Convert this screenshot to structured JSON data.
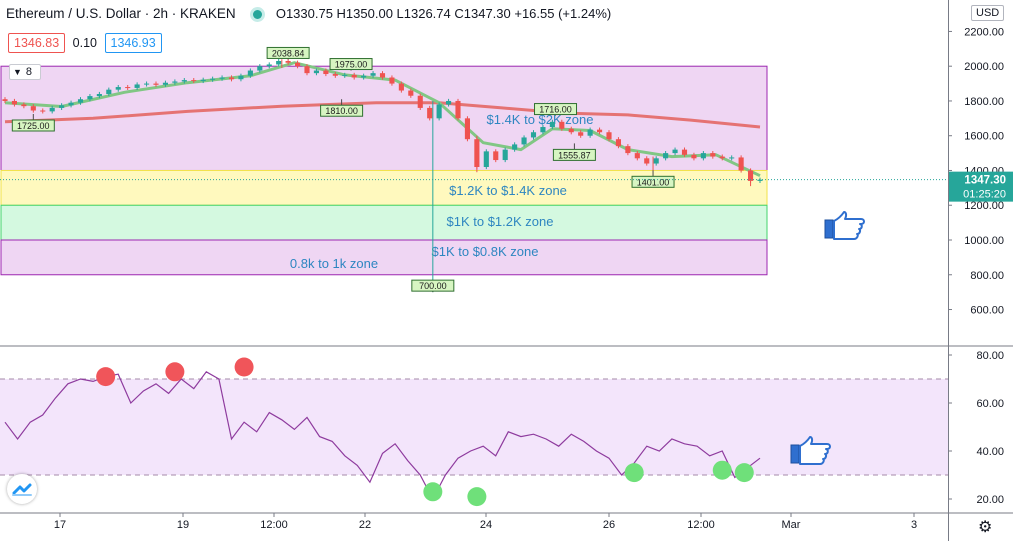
{
  "header": {
    "symbol": "Ethereum / U.S. Dollar · 2h · KRAKEN",
    "ohlc_label": "O1330.75 H1350.00 L1326.74 C1347.30 +16.55 (+1.24%)"
  },
  "quote": {
    "bid": "1346.83",
    "spread": "0.10",
    "ask": "1346.93"
  },
  "indicator_toggle": {
    "count": "8"
  },
  "currency_button": "USD",
  "price_axis": {
    "ticks": [
      "2200.00",
      "2000.00",
      "1800.00",
      "1600.00",
      "1400.00",
      "1200.00",
      "1000.00",
      "800.00",
      "600.00"
    ],
    "last_price": "1347.30",
    "countdown": "01:25:20"
  },
  "time_axis": {
    "ticks": [
      "17",
      "19",
      "12:00",
      "22",
      "24",
      "26",
      "12:00",
      "Mar",
      "3"
    ]
  },
  "osc_axis": {
    "ticks": [
      "80.00",
      "60.00",
      "40.00",
      "20.00"
    ]
  },
  "colors": {
    "up": "#26a69a",
    "down": "#ef5350",
    "ma_fast": "#81c784",
    "ma_slow": "#e57373",
    "zone_purple": "#e1bee7",
    "zone_yellow": "#fff59d",
    "zone_green": "#b9f6ca",
    "osc": "#9c27b0"
  },
  "icons": [
    "thumbs-up-icon",
    "tradingview-logo-icon",
    "gear-icon"
  ],
  "chart_data": [
    {
      "type": "candlestick",
      "title": "",
      "ylim": [
        520,
        2270
      ],
      "x_range": [
        15.6,
        27.6
      ],
      "candles": [
        [
          15.6,
          1810,
          1800
        ],
        [
          15.75,
          1800,
          1780
        ],
        [
          15.9,
          1780,
          1770
        ],
        [
          16.05,
          1770,
          1745
        ],
        [
          16.2,
          1745,
          1740
        ],
        [
          16.35,
          1740,
          1760
        ],
        [
          16.5,
          1760,
          1775
        ],
        [
          16.65,
          1775,
          1790
        ],
        [
          16.8,
          1790,
          1810
        ],
        [
          16.95,
          1810,
          1828
        ],
        [
          17.1,
          1828,
          1840
        ],
        [
          17.25,
          1840,
          1865
        ],
        [
          17.4,
          1865,
          1880
        ],
        [
          17.55,
          1880,
          1875
        ],
        [
          17.7,
          1875,
          1895
        ],
        [
          17.85,
          1895,
          1900
        ],
        [
          18.0,
          1900,
          1893
        ],
        [
          18.15,
          1893,
          1905
        ],
        [
          18.3,
          1905,
          1912
        ],
        [
          18.45,
          1912,
          1920
        ],
        [
          18.6,
          1920,
          1915
        ],
        [
          18.75,
          1915,
          1922
        ],
        [
          18.9,
          1922,
          1928
        ],
        [
          19.05,
          1928,
          1935
        ],
        [
          19.2,
          1935,
          1925
        ],
        [
          19.35,
          1925,
          1945
        ],
        [
          19.5,
          1945,
          1975
        ],
        [
          19.65,
          1975,
          2000
        ],
        [
          19.8,
          2000,
          2010
        ],
        [
          19.95,
          2010,
          2030
        ],
        [
          20.1,
          2030,
          2020
        ],
        [
          20.25,
          2020,
          2000
        ],
        [
          20.4,
          2000,
          1960
        ],
        [
          20.55,
          1960,
          1975
        ],
        [
          20.7,
          1975,
          1955
        ],
        [
          20.85,
          1955,
          1945
        ],
        [
          21.0,
          1945,
          1950
        ],
        [
          21.15,
          1950,
          1935
        ],
        [
          21.3,
          1935,
          1945
        ],
        [
          21.45,
          1945,
          1960
        ],
        [
          21.6,
          1960,
          1935
        ],
        [
          21.75,
          1935,
          1900
        ],
        [
          21.9,
          1900,
          1860
        ],
        [
          22.05,
          1860,
          1830
        ],
        [
          22.2,
          1830,
          1760
        ],
        [
          22.35,
          1760,
          1700
        ],
        [
          22.5,
          1700,
          1780
        ],
        [
          22.65,
          1780,
          1800
        ],
        [
          22.8,
          1800,
          1700
        ],
        [
          22.95,
          1700,
          1580
        ],
        [
          23.1,
          1580,
          1420
        ],
        [
          23.25,
          1420,
          1510
        ],
        [
          23.4,
          1510,
          1460
        ],
        [
          23.55,
          1460,
          1520
        ],
        [
          23.7,
          1520,
          1550
        ],
        [
          23.85,
          1550,
          1590
        ],
        [
          24.0,
          1590,
          1620
        ],
        [
          24.15,
          1620,
          1650
        ],
        [
          24.3,
          1650,
          1680
        ],
        [
          24.45,
          1680,
          1640
        ],
        [
          24.6,
          1640,
          1620
        ],
        [
          24.75,
          1620,
          1600
        ],
        [
          24.9,
          1600,
          1635
        ],
        [
          25.05,
          1635,
          1620
        ],
        [
          25.2,
          1620,
          1580
        ],
        [
          25.35,
          1580,
          1540
        ],
        [
          25.5,
          1540,
          1500
        ],
        [
          25.65,
          1500,
          1470
        ],
        [
          25.8,
          1470,
          1440
        ],
        [
          25.95,
          1440,
          1470
        ],
        [
          26.1,
          1470,
          1500
        ],
        [
          26.25,
          1500,
          1520
        ],
        [
          26.4,
          1520,
          1490
        ],
        [
          26.55,
          1490,
          1470
        ],
        [
          26.7,
          1470,
          1500
        ],
        [
          26.85,
          1500,
          1480
        ],
        [
          27.0,
          1480,
          1470
        ],
        [
          27.15,
          1470,
          1475
        ],
        [
          27.3,
          1475,
          1400
        ],
        [
          27.45,
          1400,
          1340
        ],
        [
          27.6,
          1340,
          1347
        ]
      ],
      "wicks": [
        [
          20.0,
          2040,
          1990
        ],
        [
          22.4,
          1800,
          700
        ],
        [
          23.1,
          1600,
          1390
        ],
        [
          25.9,
          1480,
          1400
        ],
        [
          27.45,
          1410,
          1310
        ]
      ],
      "ma_fast": [
        [
          15.6,
          1790
        ],
        [
          16.5,
          1768
        ],
        [
          17.5,
          1850
        ],
        [
          18.5,
          1905
        ],
        [
          19.5,
          1945
        ],
        [
          20.2,
          2020
        ],
        [
          21.0,
          1950
        ],
        [
          21.8,
          1920
        ],
        [
          22.5,
          1790
        ],
        [
          23.2,
          1560
        ],
        [
          23.8,
          1520
        ],
        [
          24.3,
          1640
        ],
        [
          24.9,
          1630
        ],
        [
          25.5,
          1520
        ],
        [
          26.2,
          1480
        ],
        [
          26.9,
          1490
        ],
        [
          27.6,
          1370
        ]
      ],
      "ma_slow": [
        [
          15.6,
          1680
        ],
        [
          17.0,
          1700
        ],
        [
          18.5,
          1740
        ],
        [
          20.0,
          1770
        ],
        [
          21.5,
          1790
        ],
        [
          22.5,
          1790
        ],
        [
          23.5,
          1760
        ],
        [
          24.5,
          1730
        ],
        [
          25.5,
          1720
        ],
        [
          26.5,
          1690
        ],
        [
          27.6,
          1650
        ]
      ],
      "labels": [
        {
          "x": 20.1,
          "y": 2038.84,
          "text": "2038.84"
        },
        {
          "x": 16.05,
          "y": 1725.0,
          "text": "1725.00"
        },
        {
          "x": 21.1,
          "y": 1975.0,
          "text": "1975.00"
        },
        {
          "x": 20.95,
          "y": 1810.0,
          "text": "1810.00"
        },
        {
          "x": 24.35,
          "y": 1716.0,
          "text": "1716.00"
        },
        {
          "x": 24.65,
          "y": 1555.87,
          "text": "1555.87"
        },
        {
          "x": 25.9,
          "y": 1401.0,
          "text": "1401.00"
        },
        {
          "x": 22.4,
          "y": 700.0,
          "text": "700.00"
        }
      ],
      "zones": [
        {
          "name": "$1.4K to $2K zone",
          "low": 1400,
          "high": 2000,
          "color": "purple"
        },
        {
          "name": "$1.2K to $1.4K zone",
          "low": 1200,
          "high": 1400,
          "color": "yellow"
        },
        {
          "name": "$1K to $1.2K zone",
          "low": 1000,
          "high": 1200,
          "color": "green"
        },
        {
          "name": "$1K to $0.8K zone",
          "low": 800,
          "high": 1000,
          "color": "purple"
        }
      ],
      "annotation": "0.8k to 1k zone"
    },
    {
      "type": "line",
      "title": "",
      "ylim": [
        15,
        80
      ],
      "bands": [
        30,
        70
      ],
      "x": [
        15.6,
        15.8,
        16.0,
        16.2,
        16.4,
        16.6,
        16.8,
        17.0,
        17.2,
        17.4,
        17.6,
        17.8,
        18.0,
        18.2,
        18.4,
        18.6,
        18.8,
        19.0,
        19.2,
        19.4,
        19.6,
        19.8,
        20.0,
        20.2,
        20.4,
        20.6,
        20.8,
        21.0,
        21.2,
        21.4,
        21.6,
        21.8,
        22.0,
        22.2,
        22.4,
        22.6,
        22.8,
        23.0,
        23.2,
        23.4,
        23.6,
        23.8,
        24.0,
        24.2,
        24.4,
        24.6,
        24.8,
        25.0,
        25.2,
        25.4,
        25.6,
        25.8,
        26.0,
        26.2,
        26.4,
        26.6,
        26.8,
        27.0,
        27.2,
        27.4,
        27.6
      ],
      "values": [
        52,
        45,
        52,
        55,
        62,
        68,
        70,
        69,
        71,
        72,
        60,
        65,
        68,
        64,
        70,
        66,
        73,
        70,
        45,
        52,
        48,
        56,
        53,
        49,
        54,
        46,
        44,
        38,
        34,
        27,
        39,
        43,
        36,
        30,
        20,
        30,
        37,
        40,
        42,
        38,
        48,
        46,
        47,
        45,
        42,
        47,
        44,
        40,
        37,
        30,
        35,
        42,
        40,
        45,
        43,
        42,
        38,
        40,
        29,
        33,
        37
      ]
    }
  ]
}
